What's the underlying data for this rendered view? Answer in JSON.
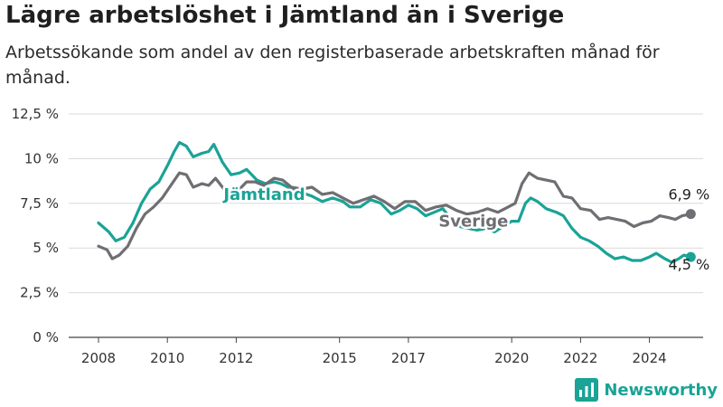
{
  "chart_data": {
    "type": "line",
    "title": "Lägre arbetslöshet i Jämtland än i Sverige",
    "subtitle": "Arbetssökande som andel av den registerbaserade arbetskraften månad för månad.",
    "xlabel": "",
    "ylabel": "",
    "xlim": [
      2007.5,
      2025.6
    ],
    "ylim": [
      0,
      12.5
    ],
    "y_ticks": [
      0,
      2.5,
      5,
      7.5,
      10,
      12.5
    ],
    "y_tick_labels": [
      "0 %",
      "2,5 %",
      "5 %",
      "7,5 %",
      "10 %",
      "12,5 %"
    ],
    "x_ticks": [
      2008,
      2010,
      2012,
      2015,
      2017,
      2020,
      2022,
      2024
    ],
    "x_tick_labels": [
      "2008",
      "2010",
      "2012",
      "2015",
      "2017",
      "2020",
      "2022",
      "2024"
    ],
    "grid": "horizontal",
    "legend": "inline labels",
    "series": [
      {
        "name": "Jämtland",
        "color": "#1aa396",
        "end_label": "4,5 %",
        "points": [
          [
            2008.0,
            6.4
          ],
          [
            2008.3,
            5.9
          ],
          [
            2008.5,
            5.4
          ],
          [
            2008.75,
            5.6
          ],
          [
            2009.0,
            6.4
          ],
          [
            2009.25,
            7.5
          ],
          [
            2009.5,
            8.3
          ],
          [
            2009.75,
            8.7
          ],
          [
            2010.0,
            9.6
          ],
          [
            2010.2,
            10.4
          ],
          [
            2010.35,
            10.9
          ],
          [
            2010.55,
            10.7
          ],
          [
            2010.75,
            10.1
          ],
          [
            2011.0,
            10.3
          ],
          [
            2011.2,
            10.4
          ],
          [
            2011.35,
            10.8
          ],
          [
            2011.6,
            9.8
          ],
          [
            2011.85,
            9.1
          ],
          [
            2012.1,
            9.2
          ],
          [
            2012.3,
            9.4
          ],
          [
            2012.6,
            8.8
          ],
          [
            2012.85,
            8.6
          ],
          [
            2013.1,
            8.7
          ],
          [
            2013.3,
            8.6
          ],
          [
            2013.6,
            8.3
          ],
          [
            2013.9,
            8.1
          ],
          [
            2014.2,
            7.9
          ],
          [
            2014.5,
            7.6
          ],
          [
            2014.8,
            7.8
          ],
          [
            2015.1,
            7.6
          ],
          [
            2015.3,
            7.3
          ],
          [
            2015.6,
            7.3
          ],
          [
            2015.9,
            7.7
          ],
          [
            2016.2,
            7.5
          ],
          [
            2016.5,
            6.9
          ],
          [
            2016.75,
            7.1
          ],
          [
            2017.0,
            7.4
          ],
          [
            2017.25,
            7.2
          ],
          [
            2017.5,
            6.8
          ],
          [
            2017.75,
            7.0
          ],
          [
            2018.0,
            7.2
          ],
          [
            2018.25,
            6.6
          ],
          [
            2018.5,
            6.2
          ],
          [
            2018.75,
            6.1
          ],
          [
            2019.0,
            6.0
          ],
          [
            2019.25,
            6.1
          ],
          [
            2019.5,
            5.9
          ],
          [
            2019.75,
            6.2
          ],
          [
            2020.0,
            6.5
          ],
          [
            2020.2,
            6.5
          ],
          [
            2020.4,
            7.5
          ],
          [
            2020.55,
            7.8
          ],
          [
            2020.75,
            7.6
          ],
          [
            2021.0,
            7.2
          ],
          [
            2021.3,
            7.0
          ],
          [
            2021.5,
            6.8
          ],
          [
            2021.75,
            6.1
          ],
          [
            2022.0,
            5.6
          ],
          [
            2022.25,
            5.4
          ],
          [
            2022.5,
            5.1
          ],
          [
            2022.75,
            4.7
          ],
          [
            2023.0,
            4.4
          ],
          [
            2023.25,
            4.5
          ],
          [
            2023.5,
            4.3
          ],
          [
            2023.75,
            4.3
          ],
          [
            2024.0,
            4.5
          ],
          [
            2024.2,
            4.7
          ],
          [
            2024.45,
            4.4
          ],
          [
            2024.65,
            4.2
          ],
          [
            2024.85,
            4.4
          ],
          [
            2025.0,
            4.6
          ],
          [
            2025.2,
            4.5
          ]
        ]
      },
      {
        "name": "Sverige",
        "color": "#6e6e73",
        "end_label": "6,9 %",
        "points": [
          [
            2008.0,
            5.1
          ],
          [
            2008.25,
            4.9
          ],
          [
            2008.4,
            4.4
          ],
          [
            2008.6,
            4.6
          ],
          [
            2008.85,
            5.1
          ],
          [
            2009.1,
            6.1
          ],
          [
            2009.35,
            6.9
          ],
          [
            2009.6,
            7.3
          ],
          [
            2009.85,
            7.8
          ],
          [
            2010.1,
            8.5
          ],
          [
            2010.35,
            9.2
          ],
          [
            2010.55,
            9.1
          ],
          [
            2010.75,
            8.4
          ],
          [
            2011.0,
            8.6
          ],
          [
            2011.2,
            8.5
          ],
          [
            2011.4,
            8.9
          ],
          [
            2011.6,
            8.4
          ],
          [
            2011.8,
            7.9
          ],
          [
            2012.05,
            8.2
          ],
          [
            2012.3,
            8.7
          ],
          [
            2012.55,
            8.7
          ],
          [
            2012.8,
            8.5
          ],
          [
            2013.1,
            8.9
          ],
          [
            2013.35,
            8.8
          ],
          [
            2013.6,
            8.4
          ],
          [
            2013.9,
            8.3
          ],
          [
            2014.2,
            8.4
          ],
          [
            2014.5,
            8.0
          ],
          [
            2014.8,
            8.1
          ],
          [
            2015.1,
            7.8
          ],
          [
            2015.4,
            7.5
          ],
          [
            2015.7,
            7.7
          ],
          [
            2016.0,
            7.9
          ],
          [
            2016.3,
            7.6
          ],
          [
            2016.6,
            7.2
          ],
          [
            2016.9,
            7.6
          ],
          [
            2017.2,
            7.6
          ],
          [
            2017.5,
            7.1
          ],
          [
            2017.8,
            7.3
          ],
          [
            2018.1,
            7.4
          ],
          [
            2018.4,
            7.1
          ],
          [
            2018.7,
            6.9
          ],
          [
            2019.0,
            7.0
          ],
          [
            2019.3,
            7.2
          ],
          [
            2019.6,
            7.0
          ],
          [
            2019.9,
            7.3
          ],
          [
            2020.1,
            7.5
          ],
          [
            2020.3,
            8.6
          ],
          [
            2020.5,
            9.2
          ],
          [
            2020.75,
            8.9
          ],
          [
            2021.0,
            8.8
          ],
          [
            2021.25,
            8.7
          ],
          [
            2021.5,
            7.9
          ],
          [
            2021.75,
            7.8
          ],
          [
            2022.0,
            7.2
          ],
          [
            2022.3,
            7.1
          ],
          [
            2022.55,
            6.6
          ],
          [
            2022.8,
            6.7
          ],
          [
            2023.05,
            6.6
          ],
          [
            2023.3,
            6.5
          ],
          [
            2023.55,
            6.2
          ],
          [
            2023.8,
            6.4
          ],
          [
            2024.05,
            6.5
          ],
          [
            2024.3,
            6.8
          ],
          [
            2024.55,
            6.7
          ],
          [
            2024.75,
            6.6
          ],
          [
            2024.95,
            6.8
          ],
          [
            2025.2,
            6.9
          ]
        ]
      }
    ]
  },
  "brand": {
    "name": "Newsworthy",
    "color": "#1aa396"
  }
}
